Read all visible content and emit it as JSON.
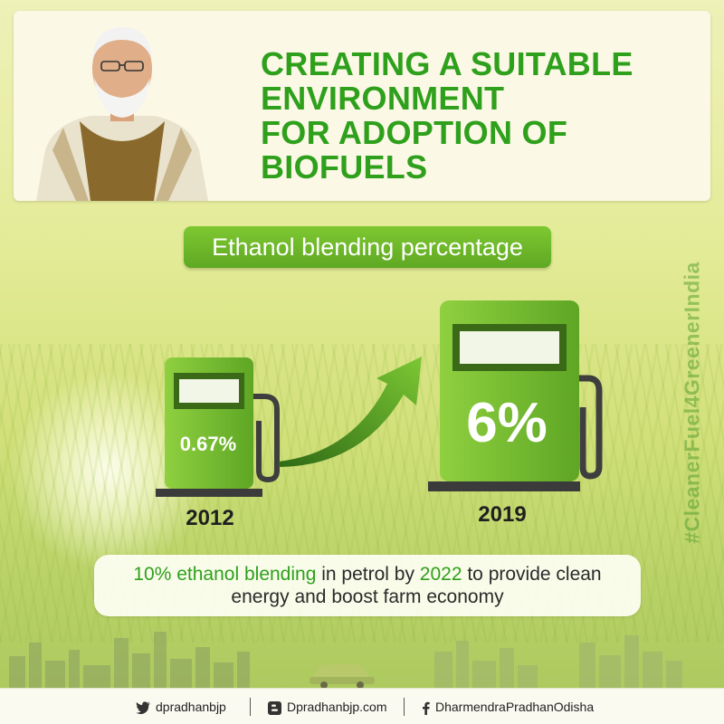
{
  "headline": [
    "CREATING A SUITABLE",
    "ENVIRONMENT",
    "FOR ADOPTION OF",
    "BIOFUELS"
  ],
  "subtitle": "Ethanol blending percentage",
  "pumps": [
    {
      "value_label": "0.67%",
      "year": "2012"
    },
    {
      "value_label": "6%",
      "year": "2019"
    }
  ],
  "caption": {
    "part1_highlight": "10% ethanol blending",
    "part2": " in petrol by ",
    "part3_highlight": "2022",
    "part4": " to provide clean",
    "line2": "energy and boost farm economy"
  },
  "hashtag": "#CleanerFuel4GreenerIndia",
  "footer": {
    "twitter": "dpradhanbjp",
    "blog": "Dpradhanbjp.com",
    "facebook": "DharmendraPradhanOdisha"
  },
  "icons": [
    "twitter-icon",
    "blogger-icon",
    "facebook-icon",
    "fuel-pump-icon",
    "growth-arrow-icon",
    "car-icon"
  ],
  "colors": {
    "accent_green": "#2ea01c",
    "pump_green": "#6cb82c",
    "pill_green": "#6cbc2c"
  }
}
